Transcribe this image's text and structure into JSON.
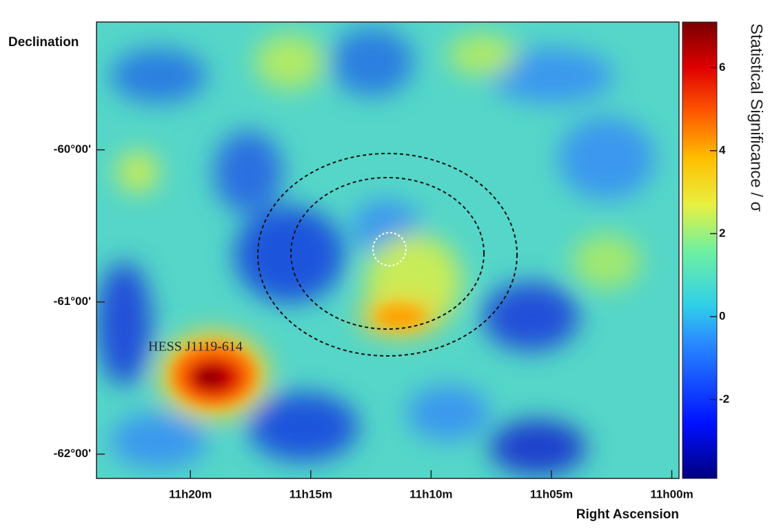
{
  "chart_data": {
    "type": "heatmap",
    "annotation": "HESS J1119-614",
    "xlabel": "Right Ascension",
    "ylabel": "Declination",
    "colorbar_label": "Statistical Significance / σ",
    "xlim": [
      683.9,
      659.7
    ],
    "xticks": [
      {
        "value": 680,
        "label": "11h20m"
      },
      {
        "value": 675,
        "label": "11h15m"
      },
      {
        "value": 670,
        "label": "11h10m"
      },
      {
        "value": 665,
        "label": "11h05m"
      },
      {
        "value": 660,
        "label": "11h00m"
      }
    ],
    "ylim": [
      -62.16,
      -59.16
    ],
    "yticks": [
      {
        "value": -60,
        "label": "-60°00'"
      },
      {
        "value": -61,
        "label": "-61°00'"
      },
      {
        "value": -62,
        "label": "-62°00'"
      }
    ],
    "clim": [
      -3.9,
      7.1
    ],
    "cticks": [
      -2,
      0,
      2,
      4,
      6
    ]
  }
}
